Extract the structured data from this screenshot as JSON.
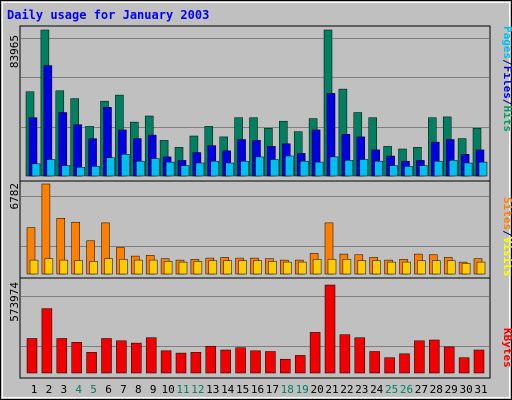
{
  "chart_data": {
    "type": "bar",
    "title": "Daily usage for January 2003",
    "days": [
      "1",
      "2",
      "3",
      "4",
      "5",
      "6",
      "7",
      "8",
      "9",
      "10",
      "11",
      "12",
      "13",
      "14",
      "15",
      "16",
      "17",
      "18",
      "19",
      "20",
      "21",
      "22",
      "23",
      "24",
      "25",
      "26",
      "27",
      "28",
      "29",
      "30",
      "31"
    ],
    "weekend_days": [
      "4",
      "5",
      "11",
      "12",
      "18",
      "19",
      "25",
      "26"
    ],
    "panels": [
      {
        "id": "top",
        "max_label": "83965",
        "ymax": 83965,
        "legend": [
          {
            "text": "Pages",
            "color": "#00c0f0"
          },
          {
            "text": "/",
            "color": "#000080"
          },
          {
            "text": "Files",
            "color": "#0000e0"
          },
          {
            "text": "/",
            "color": "#000080"
          },
          {
            "text": "Hits",
            "color": "#00a060"
          }
        ],
        "series": [
          {
            "name": "Hits",
            "color": "#008060",
            "values": [
              48500,
              83965,
              49000,
              44500,
              28500,
              43000,
              46500,
              31000,
              34500,
              20500,
              16500,
              23000,
              28500,
              22500,
              33500,
              33500,
              27500,
              31500,
              25500,
              33000,
              85000,
              50000,
              36500,
              33500,
              17000,
              15500,
              16500,
              33500,
              34000,
              21500,
              27500
            ]
          },
          {
            "name": "Files",
            "color": "#0000e0",
            "values": [
              33500,
              63500,
              36500,
              29500,
              21500,
              39500,
              26500,
              21500,
              23500,
              11000,
              9000,
              13500,
              17500,
              14500,
              21000,
              20500,
              17000,
              18500,
              13000,
              26500,
              47500,
              24000,
              22500,
              15000,
              11500,
              8500,
              9000,
              19500,
              21000,
              12500,
              15000
            ]
          },
          {
            "name": "Pages",
            "color": "#00c0f0",
            "values": [
              7000,
              9500,
              6000,
              5000,
              5500,
              10500,
              12500,
              8500,
              10000,
              8000,
              6000,
              7500,
              8500,
              7500,
              8500,
              11000,
              9500,
              11500,
              8500,
              8000,
              11000,
              9000,
              9500,
              8500,
              6000,
              5500,
              6000,
              8500,
              9000,
              7500,
              8000
            ]
          }
        ]
      },
      {
        "id": "middle",
        "max_label": "6782",
        "ymax": 6782,
        "legend": [
          {
            "text": "Sites",
            "color": "#ff8000"
          },
          {
            "text": "/",
            "color": "#000080"
          },
          {
            "text": "Visits",
            "color": "#ffff00"
          }
        ],
        "series": [
          {
            "name": "Visits",
            "color": "#ff8000",
            "values": [
              3500,
              6782,
              4200,
              3900,
              2500,
              3850,
              2000,
              1350,
              1400,
              1150,
              1050,
              1100,
              1200,
              1250,
              1200,
              1200,
              1150,
              1050,
              1050,
              1550,
              3850,
              1500,
              1450,
              1250,
              1050,
              1100,
              1500,
              1450,
              1250,
              900,
              1150
            ]
          },
          {
            "name": "Sites",
            "color": "#ffcc00",
            "values": [
              1050,
              1150,
              1050,
              1000,
              950,
              1150,
              1100,
              1050,
              1050,
              950,
              900,
              950,
              1000,
              1000,
              1000,
              1000,
              950,
              900,
              900,
              1100,
              1100,
              1100,
              1000,
              1000,
              900,
              900,
              1000,
              1000,
              1000,
              800,
              900
            ]
          }
        ]
      },
      {
        "id": "bottom",
        "max_label": "573974",
        "ymax": 573974,
        "legend": [
          {
            "text": "KBytes",
            "color": "#ff0000"
          }
        ],
        "series": [
          {
            "name": "KBytes",
            "color": "#f00000",
            "values": [
              225000,
              420000,
              225000,
              200000,
              135000,
              225000,
              210000,
              195000,
              230000,
              145000,
              130000,
              135000,
              175000,
              150000,
              165000,
              145000,
              140000,
              90000,
              115000,
              265000,
              575000,
              250000,
              230000,
              140000,
              100000,
              125000,
              210000,
              215000,
              170000,
              100000,
              150000
            ]
          }
        ]
      }
    ]
  }
}
